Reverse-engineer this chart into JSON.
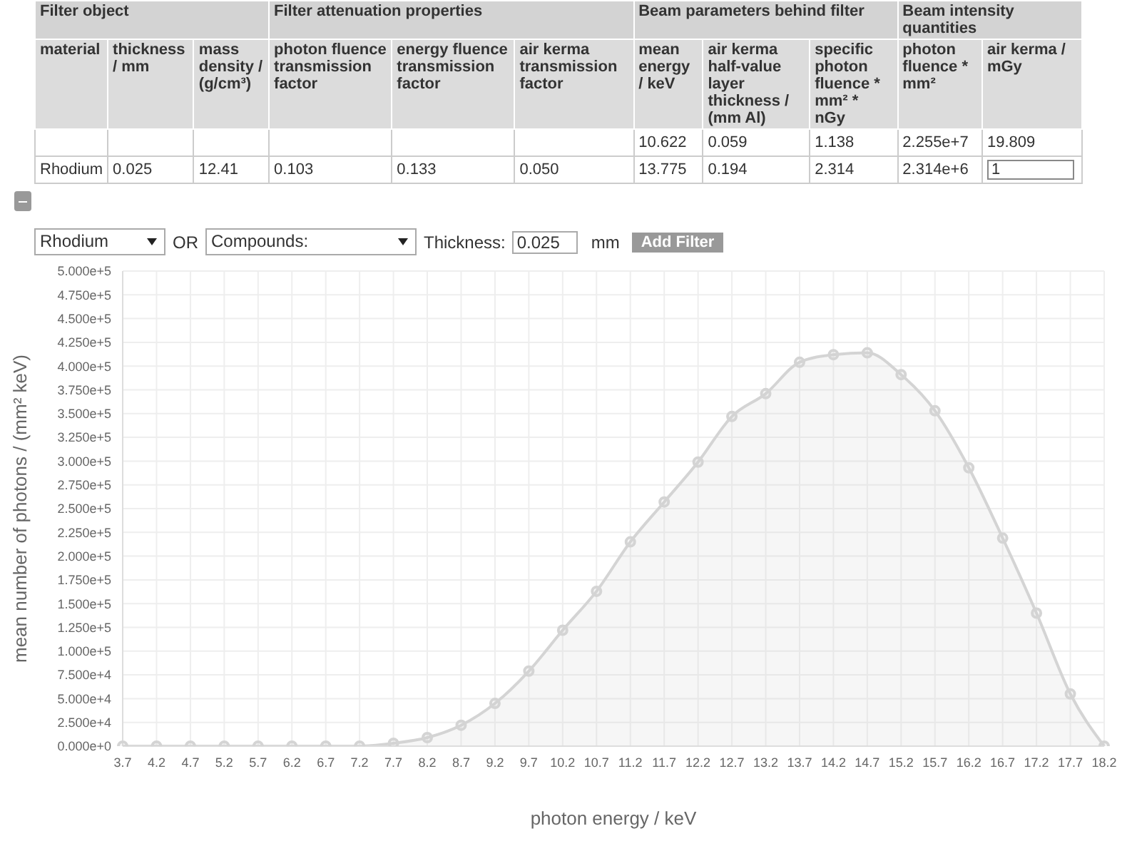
{
  "chart_data": [
    {
      "type": "other",
      "categories": [
        "material",
        "thickness / mm",
        "mass density / (g/cm³)",
        "photon fluence transmission factor",
        "energy fluence transmission factor",
        "air kerma transmission factor",
        "mean energy / keV",
        "air kerma half-value layer thickness / (mm Al)",
        "specific photon fluence * mm² * nGy",
        "photon fluence * mm²",
        "air kerma / mGy"
      ],
      "cells": [
        [
          null,
          null,
          null,
          null,
          null,
          null,
          "10.622",
          "0.059",
          "1.138",
          "2.255e+7",
          "19.809"
        ],
        [
          "Rhodium",
          "0.025",
          "12.41",
          "0.103",
          "0.133",
          "0.050",
          "13.775",
          "0.194",
          "2.314",
          "2.314e+6",
          "1"
        ]
      ],
      "annotations": [
        "Filter object",
        "Filter attenuation properties",
        "Beam parameters behind filter",
        "Beam intensity quantities",
        "Rhodium",
        "OR",
        "Compounds:",
        "Thickness:",
        "0.025",
        "mm",
        "Add Filter"
      ]
    },
    {
      "type": "area",
      "xlabel": "photon energy / keV",
      "ylabel": "mean number of photons / (mm² keV)",
      "categories": [
        "3.7",
        "4.2",
        "4.7",
        "5.2",
        "5.7",
        "6.2",
        "6.7",
        "7.2",
        "7.7",
        "8.2",
        "8.7",
        "9.2",
        "9.7",
        "10.2",
        "10.7",
        "11.2",
        "11.7",
        "12.2",
        "12.7",
        "13.2",
        "13.7",
        "14.2",
        "14.7",
        "15.2",
        "15.7",
        "16.2",
        "16.7",
        "17.2",
        "17.7",
        "18.2"
      ],
      "values": [
        0,
        0,
        0,
        0,
        0,
        0,
        0,
        0,
        3000,
        9000,
        22000,
        45000,
        79000,
        122000,
        163000,
        215000,
        257000,
        299000,
        347000,
        371000,
        404000,
        412000,
        414000,
        391000,
        353000,
        293000,
        219000,
        140000,
        55000,
        0
      ],
      "color": "#d4d4d4",
      "marker": "circle",
      "grid": true,
      "ylim": [
        0,
        500000
      ],
      "yticks": [
        {
          "value": 0,
          "label": "0.000e+0"
        },
        {
          "value": 25000,
          "label": "2.500e+4"
        },
        {
          "value": 50000,
          "label": "5.000e+4"
        },
        {
          "value": 75000,
          "label": "7.500e+4"
        },
        {
          "value": 100000,
          "label": "1.000e+5"
        },
        {
          "value": 125000,
          "label": "1.250e+5"
        },
        {
          "value": 150000,
          "label": "1.500e+5"
        },
        {
          "value": 175000,
          "label": "1.750e+5"
        },
        {
          "value": 200000,
          "label": "2.000e+5"
        },
        {
          "value": 225000,
          "label": "2.250e+5"
        },
        {
          "value": 250000,
          "label": "2.500e+5"
        },
        {
          "value": 275000,
          "label": "2.750e+5"
        },
        {
          "value": 300000,
          "label": "3.000e+5"
        },
        {
          "value": 325000,
          "label": "3.250e+5"
        },
        {
          "value": 350000,
          "label": "3.500e+5"
        },
        {
          "value": 375000,
          "label": "3.750e+5"
        },
        {
          "value": 400000,
          "label": "4.000e+5"
        },
        {
          "value": 425000,
          "label": "4.250e+5"
        },
        {
          "value": 450000,
          "label": "4.500e+5"
        },
        {
          "value": 475000,
          "label": "4.750e+5"
        },
        {
          "value": 500000,
          "label": "5.000e+5"
        }
      ]
    }
  ]
}
